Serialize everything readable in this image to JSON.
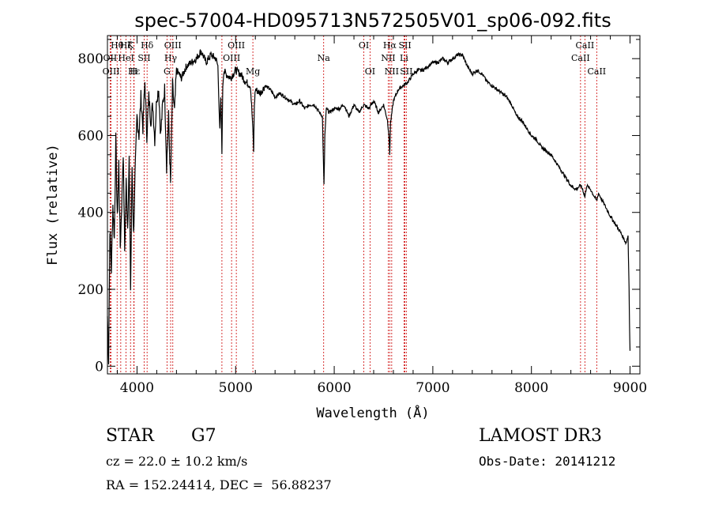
{
  "chart_data": {
    "type": "line",
    "title": "spec-57004-HD095713N572505V01_sp06-092.fits",
    "xlabel": "Wavelength (Å)",
    "ylabel": "Flux (relative)",
    "xlim": [
      3700,
      9100
    ],
    "ylim": [
      -20,
      860
    ],
    "xticks": [
      4000,
      5000,
      6000,
      7000,
      8000,
      9000
    ],
    "yticks": [
      0,
      200,
      400,
      600,
      800
    ],
    "grid": false,
    "series": [
      {
        "x": [
          3700,
          3712,
          3725,
          3740,
          3755,
          3770,
          3785,
          3800,
          3815,
          3830,
          3845,
          3860,
          3875,
          3890,
          3905,
          3920,
          3935,
          3950,
          3965,
          3980,
          4000,
          4020,
          4040,
          4060,
          4080,
          4100,
          4120,
          4140,
          4160,
          4180,
          4200,
          4220,
          4240,
          4260,
          4280,
          4300,
          4320,
          4340,
          4360,
          4380,
          4400,
          4450,
          4500,
          4550,
          4600,
          4650,
          4700,
          4750,
          4800,
          4820,
          4840,
          4850,
          4861,
          4870,
          4880,
          4900,
          4950,
          5000,
          5050,
          5100,
          5150,
          5170,
          5183,
          5190,
          5200,
          5250,
          5300,
          5350,
          5400,
          5450,
          5500,
          5550,
          5600,
          5650,
          5700,
          5750,
          5800,
          5850,
          5880,
          5890,
          5896,
          5905,
          5920,
          5950,
          6000,
          6050,
          6100,
          6150,
          6200,
          6250,
          6300,
          6350,
          6400,
          6450,
          6500,
          6540,
          6555,
          6563,
          6570,
          6580,
          6600,
          6650,
          6700,
          6750,
          6800,
          6850,
          6900,
          6950,
          7000,
          7050,
          7100,
          7150,
          7200,
          7250,
          7300,
          7350,
          7400,
          7450,
          7500,
          7550,
          7600,
          7650,
          7700,
          7750,
          7800,
          7850,
          7900,
          7950,
          8000,
          8050,
          8100,
          8150,
          8200,
          8250,
          8300,
          8350,
          8400,
          8450,
          8498,
          8520,
          8542,
          8560,
          8600,
          8640,
          8662,
          8680,
          8720,
          8760,
          8800,
          8850,
          8900,
          8940,
          8960,
          8980,
          8990,
          8995,
          9000
        ],
        "values": [
          130,
          15,
          360,
          250,
          420,
          330,
          590,
          380,
          530,
          310,
          420,
          560,
          300,
          480,
          360,
          540,
          200,
          520,
          340,
          490,
          650,
          600,
          700,
          620,
          740,
          600,
          700,
          640,
          680,
          590,
          700,
          720,
          600,
          680,
          720,
          520,
          650,
          470,
          730,
          660,
          770,
          750,
          780,
          790,
          800,
          820,
          790,
          810,
          800,
          780,
          610,
          700,
          560,
          730,
          770,
          760,
          750,
          770,
          760,
          740,
          730,
          640,
          560,
          680,
          720,
          710,
          730,
          720,
          700,
          710,
          700,
          690,
          680,
          690,
          670,
          680,
          680,
          660,
          650,
          540,
          470,
          600,
          670,
          660,
          670,
          670,
          680,
          650,
          680,
          660,
          680,
          670,
          690,
          660,
          680,
          640,
          600,
          550,
          630,
          650,
          690,
          720,
          730,
          740,
          760,
          770,
          770,
          780,
          790,
          790,
          800,
          790,
          800,
          810,
          810,
          780,
          760,
          770,
          760,
          740,
          730,
          720,
          710,
          700,
          680,
          650,
          640,
          620,
          600,
          590,
          570,
          560,
          550,
          530,
          510,
          490,
          470,
          460,
          470,
          460,
          440,
          470,
          460,
          440,
          430,
          450,
          430,
          410,
          390,
          370,
          350,
          330,
          320,
          340,
          200,
          100,
          40
        ]
      }
    ],
    "line_markers": [
      {
        "label": "Hθ",
        "x": 3798,
        "row": 1
      },
      {
        "label": "OII",
        "x": 3727,
        "row": 2
      },
      {
        "label": "OIII",
        "x": 3737,
        "row": 3
      },
      {
        "label": "K",
        "x": 3934,
        "row": 1
      },
      {
        "label": "Hζ",
        "x": 3889,
        "row": 1
      },
      {
        "label": "HeI",
        "x": 3889,
        "row": 2
      },
      {
        "label": "Hε",
        "x": 3970,
        "row": 3
      },
      {
        "label": "H",
        "x": 3968,
        "row": 3
      },
      {
        "label": "Hδ",
        "x": 4102,
        "row": 1
      },
      {
        "label": "SII",
        "x": 4072,
        "row": 2
      },
      {
        "label": "OIII",
        "x": 4363,
        "row": 1
      },
      {
        "label": "Hγ",
        "x": 4341,
        "row": 2
      },
      {
        "label": "G",
        "x": 4304,
        "row": 3
      },
      {
        "label": "OIII",
        "x": 5007,
        "row": 1
      },
      {
        "label": "OIII",
        "x": 4959,
        "row": 2
      },
      {
        "label": "Mg",
        "x": 5175,
        "row": 3
      },
      {
        "label": "Na",
        "x": 5893,
        "row": 2
      },
      {
        "label": "OI",
        "x": 6300,
        "row": 1
      },
      {
        "label": "OI",
        "x": 6363,
        "row": 3
      },
      {
        "label": "Hα",
        "x": 6563,
        "row": 1
      },
      {
        "label": "SII",
        "x": 6717,
        "row": 1
      },
      {
        "label": "NII",
        "x": 6548,
        "row": 2
      },
      {
        "label": "Li",
        "x": 6708,
        "row": 2
      },
      {
        "label": "NII",
        "x": 6583,
        "row": 3
      },
      {
        "label": "SII",
        "x": 6731,
        "row": 3
      },
      {
        "label": "CaII",
        "x": 8542,
        "row": 1
      },
      {
        "label": "CaII",
        "x": 8498,
        "row": 2
      },
      {
        "label": "CaII",
        "x": 8662,
        "row": 3
      }
    ],
    "marker_lines_x": [
      3727,
      3737,
      3798,
      3835,
      3889,
      3934,
      3968,
      3970,
      4072,
      4102,
      4304,
      4341,
      4363,
      4861,
      4959,
      5007,
      5175,
      5893,
      6300,
      6363,
      6548,
      6563,
      6583,
      6708,
      6717,
      6731,
      8498,
      8542,
      8662
    ],
    "marker_color": "#cc0000"
  },
  "info": {
    "object_class": "STAR",
    "subclass": "G7",
    "survey": "LAMOST DR3",
    "velocity": "cz = 22.0 ± 10.2 km/s",
    "obs_date": "Obs-Date: 20141212",
    "coords": "RA = 152.24414, DEC =  56.88237"
  }
}
